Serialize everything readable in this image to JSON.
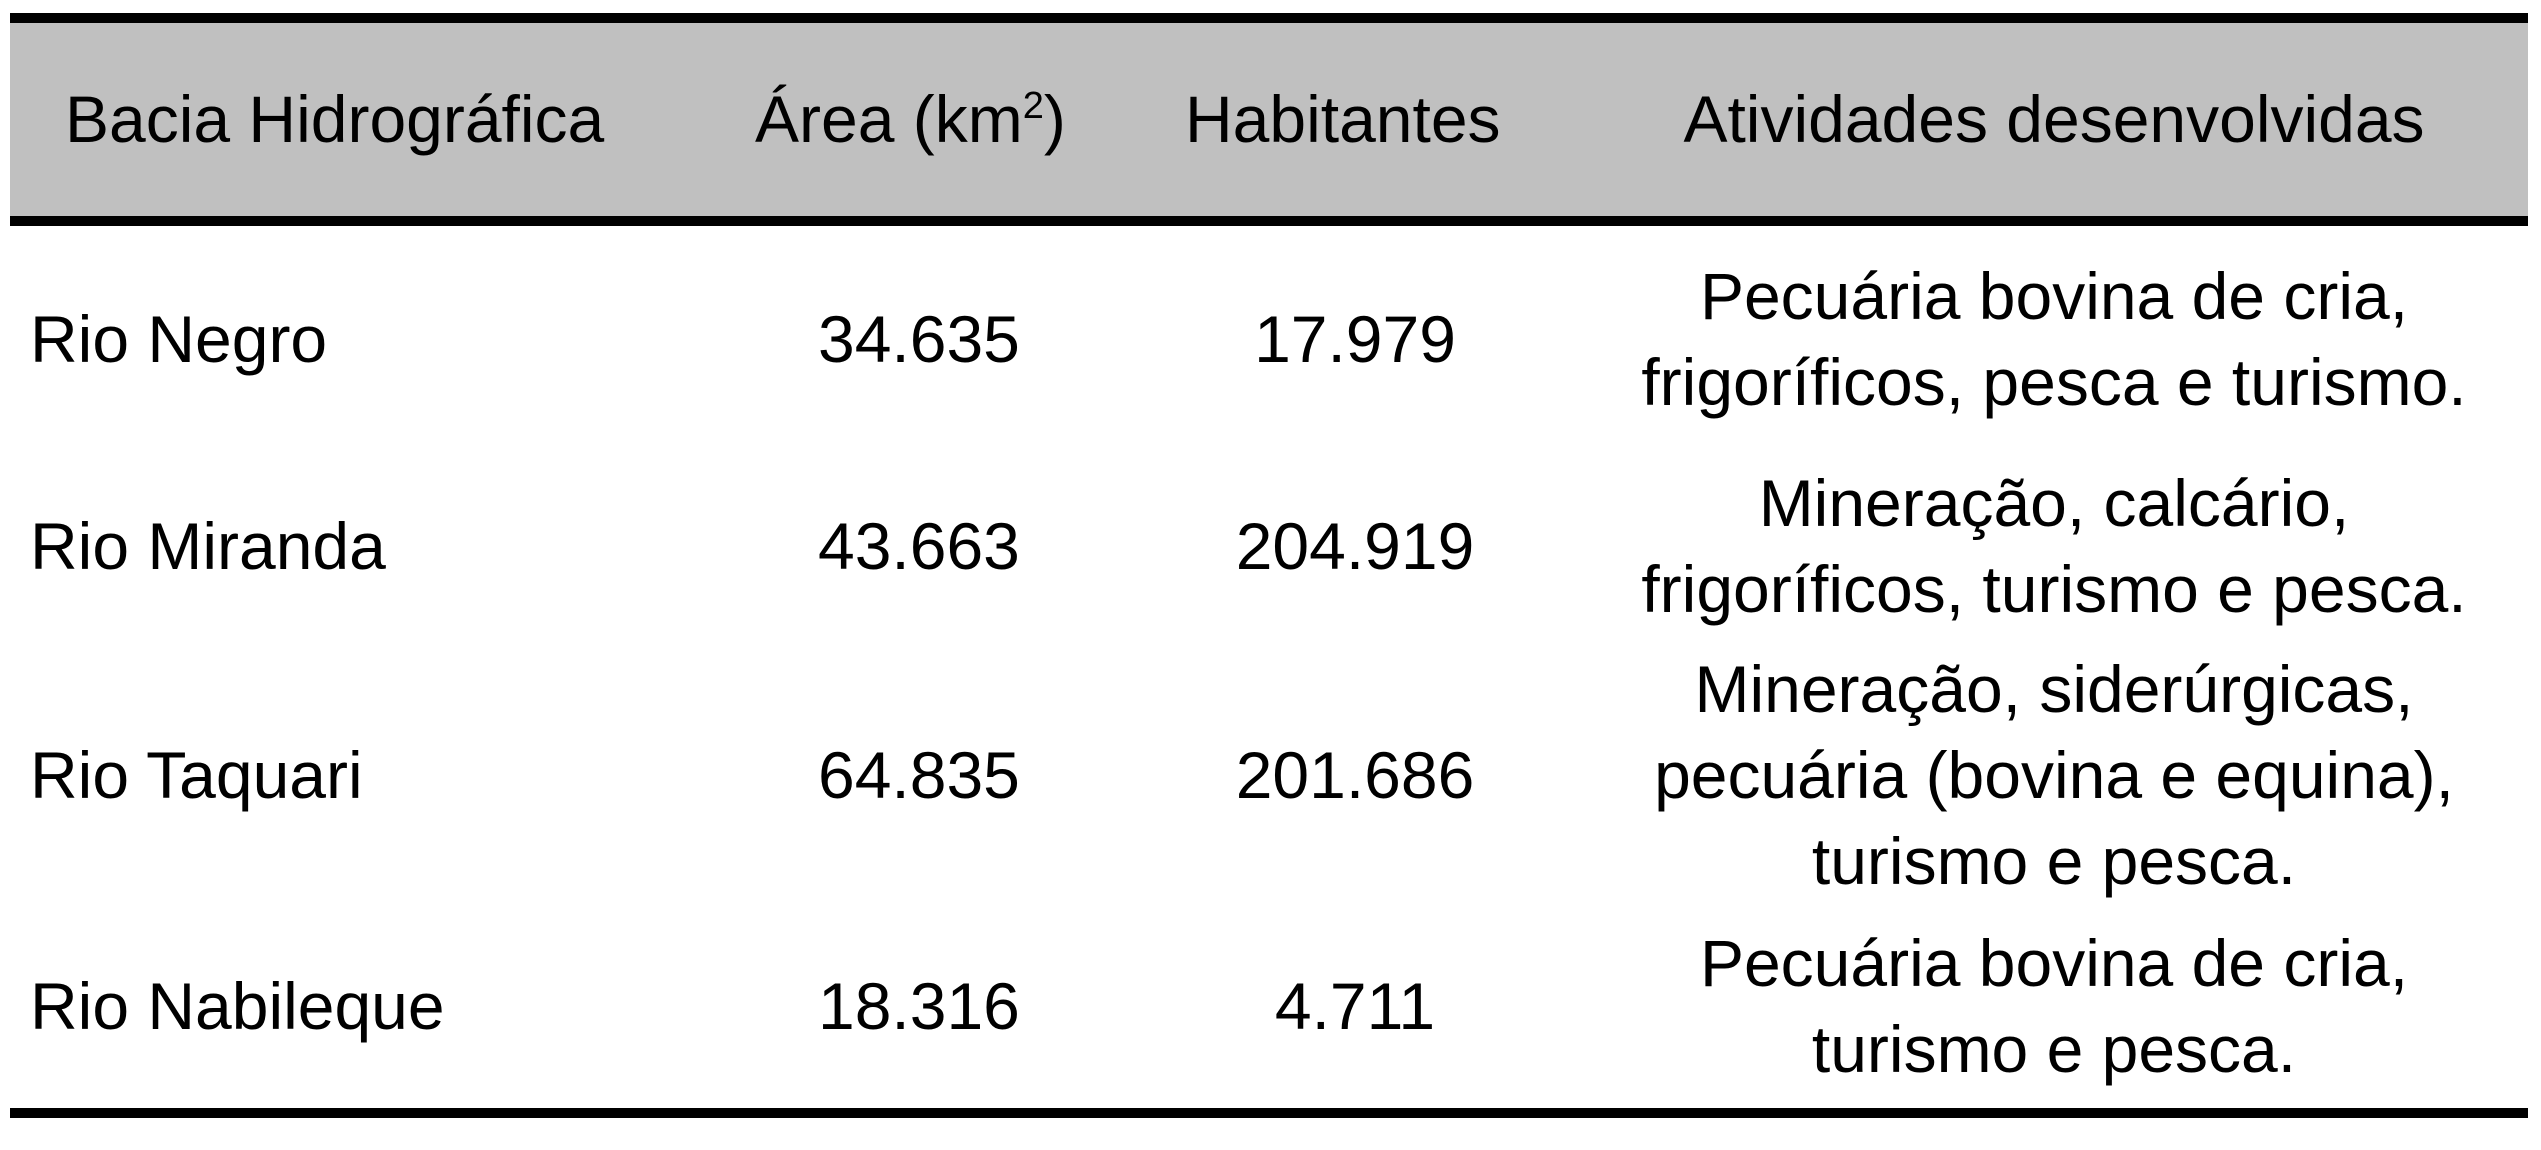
{
  "table": {
    "headers": {
      "basin": "Bacia Hidrográfica",
      "area_prefix": "Área (km",
      "area_sup": "2",
      "area_suffix": ")",
      "inhabitants": "Habitantes",
      "activities": "Atividades desenvolvidas"
    },
    "rows": [
      {
        "basin": "Rio Negro",
        "area": "34.635",
        "inhabitants": "17.979",
        "activities": [
          "Pecuária bovina de cria,",
          "frigoríficos, pesca e turismo."
        ]
      },
      {
        "basin": "Rio Miranda",
        "area": "43.663",
        "inhabitants": "204.919",
        "activities": [
          "Mineração, calcário,",
          "frigoríficos, turismo e pesca."
        ]
      },
      {
        "basin": "Rio Taquari",
        "area": "64.835",
        "inhabitants": "201.686",
        "activities": [
          "Mineração, siderúrgicas,",
          "pecuária (bovina e equina),",
          "turismo e pesca."
        ]
      },
      {
        "basin": "Rio Nabileque",
        "area": "18.316",
        "inhabitants": "4.711",
        "activities": [
          "Pecuária bovina de cria,",
          "turismo e pesca."
        ]
      }
    ]
  },
  "colors": {
    "header_background": "#c0c0c0",
    "rule": "#000000",
    "text": "#000000",
    "background": "#ffffff"
  }
}
